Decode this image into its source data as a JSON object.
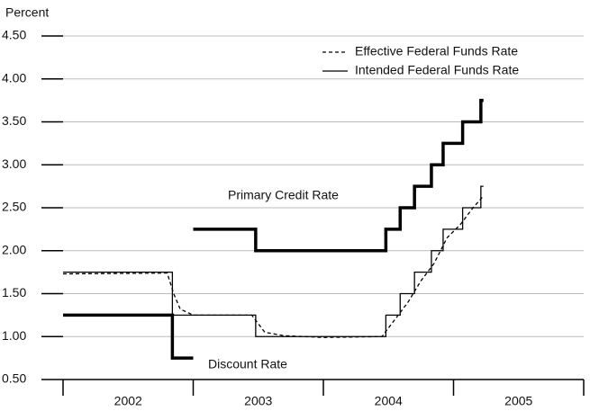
{
  "chart_data": {
    "type": "step-line",
    "y_label": "Percent",
    "ylim": [
      0.5,
      4.5
    ],
    "yticks": [
      {
        "value": 0.5,
        "label": "0.50"
      },
      {
        "value": 1.0,
        "label": "1.00"
      },
      {
        "value": 1.5,
        "label": "1.50"
      },
      {
        "value": 2.0,
        "label": "2.00"
      },
      {
        "value": 2.5,
        "label": "2.50"
      },
      {
        "value": 3.0,
        "label": "3.00"
      },
      {
        "value": 3.5,
        "label": "3.50"
      },
      {
        "value": 4.0,
        "label": "4.00"
      },
      {
        "value": 4.5,
        "label": "4.50"
      }
    ],
    "xlim": [
      2002,
      2006
    ],
    "xticks": [
      2002,
      2003,
      2004,
      2005,
      2006
    ],
    "categories": [
      "2002",
      "2003",
      "2004",
      "2005"
    ],
    "grid": true,
    "legend": "top-right",
    "series": [
      {
        "name": "Effective Federal Funds Rate",
        "style": "dashed",
        "color": "#000000",
        "legend": true,
        "x": [
          2002.0,
          2002.8,
          2002.85,
          2002.9,
          2003.0,
          2003.45,
          2003.55,
          2003.7,
          2004.0,
          2004.45,
          2004.55,
          2004.65,
          2004.75,
          2004.85,
          2004.95,
          2005.05,
          2005.15,
          2005.22
        ],
        "values": [
          1.73,
          1.74,
          1.5,
          1.32,
          1.25,
          1.25,
          1.05,
          1.01,
          0.99,
          1.0,
          1.2,
          1.4,
          1.65,
          1.85,
          2.15,
          2.3,
          2.5,
          2.62
        ]
      },
      {
        "name": "Intended Federal Funds Rate",
        "style": "step",
        "color": "#000000",
        "legend": true,
        "x": [
          2002.0,
          2002.84,
          2003.48,
          2004.48,
          2004.59,
          2004.7,
          2004.83,
          2004.92,
          2005.07,
          2005.21,
          2005.23
        ],
        "values": [
          1.75,
          1.25,
          1.0,
          1.25,
          1.5,
          1.75,
          2.0,
          2.25,
          2.5,
          2.75,
          2.75
        ]
      },
      {
        "name": "Discount Rate",
        "style": "thick-step",
        "color": "#000000",
        "legend": false,
        "x": [
          2002.0,
          2002.84,
          2003.0
        ],
        "values": [
          1.25,
          0.75,
          0.75
        ]
      },
      {
        "name": "Primary Credit Rate",
        "style": "thick-step",
        "color": "#000000",
        "legend": false,
        "x": [
          2003.0,
          2003.48,
          2004.48,
          2004.59,
          2004.7,
          2004.83,
          2004.92,
          2005.07,
          2005.21,
          2005.23
        ],
        "values": [
          2.25,
          2.0,
          2.25,
          2.5,
          2.75,
          3.0,
          3.25,
          3.5,
          3.75,
          3.75
        ]
      }
    ]
  }
}
